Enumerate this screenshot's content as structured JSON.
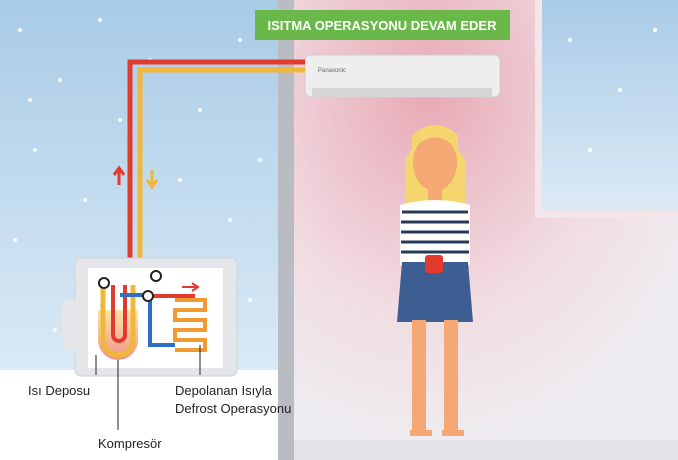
{
  "banner": "ISITMA OPERASYONU DEVAM EDER",
  "indoor_unit": {
    "brand": "Panasonic"
  },
  "labels": {
    "heat_storage": "Isı Deposu",
    "defrost_line1": "Depolanan Isıyla",
    "defrost_line2": "Defrost Operasyonu",
    "compressor": "Kompresör"
  }
}
